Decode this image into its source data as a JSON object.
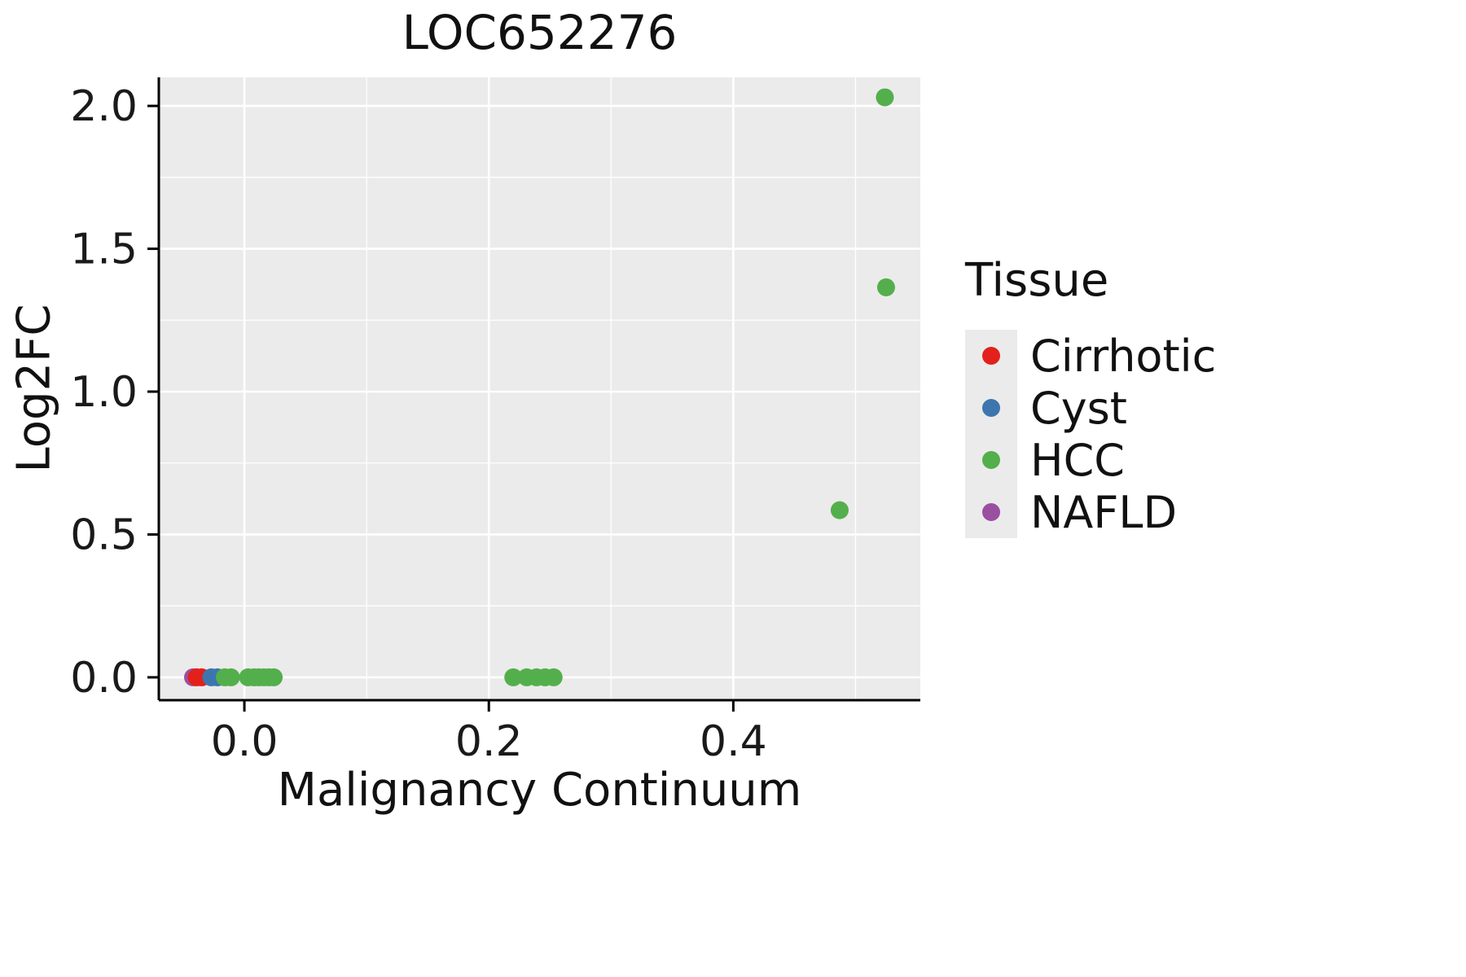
{
  "figure": {
    "title": "LOC652276",
    "xlabel": "Malignancy Continuum",
    "ylabel": "Log2FC"
  },
  "legend": {
    "title": "Tissue",
    "key_bg": "#EBEBEB",
    "entries": [
      {
        "label": "Cirrhotic",
        "color": "#E3201B"
      },
      {
        "label": "Cyst",
        "color": "#3D76AF"
      },
      {
        "label": "HCC",
        "color": "#53AF4B"
      },
      {
        "label": "NAFLD",
        "color": "#9A50A1"
      }
    ]
  },
  "chart_data": {
    "type": "scatter",
    "title": "LOC652276",
    "xlabel": "Malignancy Continuum",
    "ylabel": "Log2FC",
    "xlim": [
      -0.07,
      0.553
    ],
    "ylim": [
      -0.08,
      2.1
    ],
    "x_ticks": [
      0.0,
      0.2,
      0.4
    ],
    "x_minor_ticks": [
      0.1,
      0.3,
      0.5
    ],
    "y_ticks": [
      0.0,
      0.5,
      1.0,
      1.5,
      2.0
    ],
    "y_minor_ticks": [
      0.25,
      0.75,
      1.25,
      1.75
    ],
    "panel_bg": "#EBEBEB",
    "grid_color": "#FFFFFF",
    "axis_color": "#000000",
    "tick_label_color": "#1a1a1a",
    "point_radius": 11,
    "legend_position": "right",
    "grid": true,
    "series": [
      {
        "name": "NAFLD",
        "color": "#9A50A1",
        "points": [
          [
            -0.042,
            0.0
          ]
        ]
      },
      {
        "name": "Cirrhotic",
        "color": "#E3201B",
        "points": [
          [
            -0.039,
            0.0
          ],
          [
            -0.035,
            0.0
          ]
        ]
      },
      {
        "name": "Cyst",
        "color": "#3D76AF",
        "points": [
          [
            -0.027,
            0.0
          ],
          [
            -0.022,
            0.0
          ]
        ]
      },
      {
        "name": "HCC",
        "color": "#53AF4B",
        "points": [
          [
            -0.016,
            0.0
          ],
          [
            -0.011,
            0.0
          ],
          [
            0.003,
            0.0
          ],
          [
            0.008,
            0.0
          ],
          [
            0.012,
            0.0
          ],
          [
            0.016,
            0.0
          ],
          [
            0.02,
            0.0
          ],
          [
            0.024,
            0.0
          ],
          [
            0.22,
            0.0
          ],
          [
            0.231,
            0.0
          ],
          [
            0.239,
            0.0
          ],
          [
            0.246,
            0.0
          ],
          [
            0.253,
            0.0
          ],
          [
            0.487,
            0.585
          ],
          [
            0.525,
            1.365
          ],
          [
            0.524,
            2.03
          ]
        ]
      }
    ]
  }
}
